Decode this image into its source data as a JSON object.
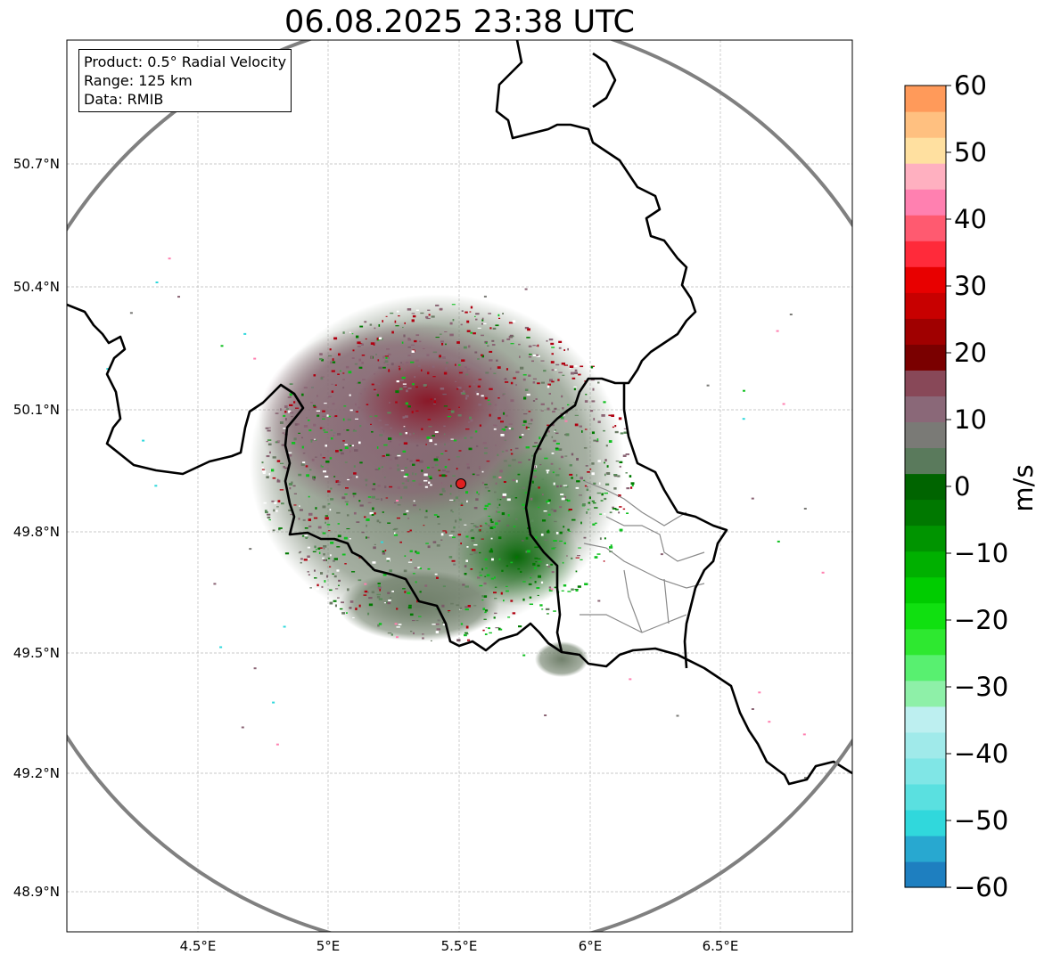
{
  "map": {
    "title": "06.08.2025 23:38 UTC",
    "info_box": {
      "product": "Product: 0.5° Radial Velocity",
      "range": "Range: 125 km",
      "data": "Data: RMIB"
    },
    "x_ticks": [
      "4.5°E",
      "5°E",
      "5.5°E",
      "6°E",
      "6.5°E"
    ],
    "y_ticks": [
      "50.7°N",
      "50.4°N",
      "50.1°N",
      "49.8°N",
      "49.5°N",
      "49.2°N",
      "48.9°N"
    ],
    "radar_site_marker_color": "#e02020",
    "range_ring_color": "#808080",
    "border_color": "#000000",
    "colorbar": {
      "unit_label": "m/s",
      "ticks": [
        "60",
        "50",
        "40",
        "30",
        "20",
        "10",
        "0",
        "−10",
        "−20",
        "−30",
        "−40",
        "−50",
        "−60"
      ],
      "range": [
        -60,
        60
      ],
      "palette": [
        "#1e7fc0",
        "#28a8d0",
        "#30d8dc",
        "#5ae0e0",
        "#80e6e6",
        "#a0eaea",
        "#bdeff0",
        "#8ef0a8",
        "#58f070",
        "#2ee830",
        "#10e010",
        "#00cc00",
        "#00b000",
        "#009400",
        "#007800",
        "#006400",
        "#5a7a5c",
        "#7a7a76",
        "#8a6878",
        "#884858",
        "#7a0000",
        "#a00000",
        "#c80000",
        "#e80000",
        "#ff2a3a",
        "#ff5a70",
        "#ff80b0",
        "#ffb0c0",
        "#ffe0a0",
        "#ffc080",
        "#ff9a5a"
      ]
    }
  }
}
